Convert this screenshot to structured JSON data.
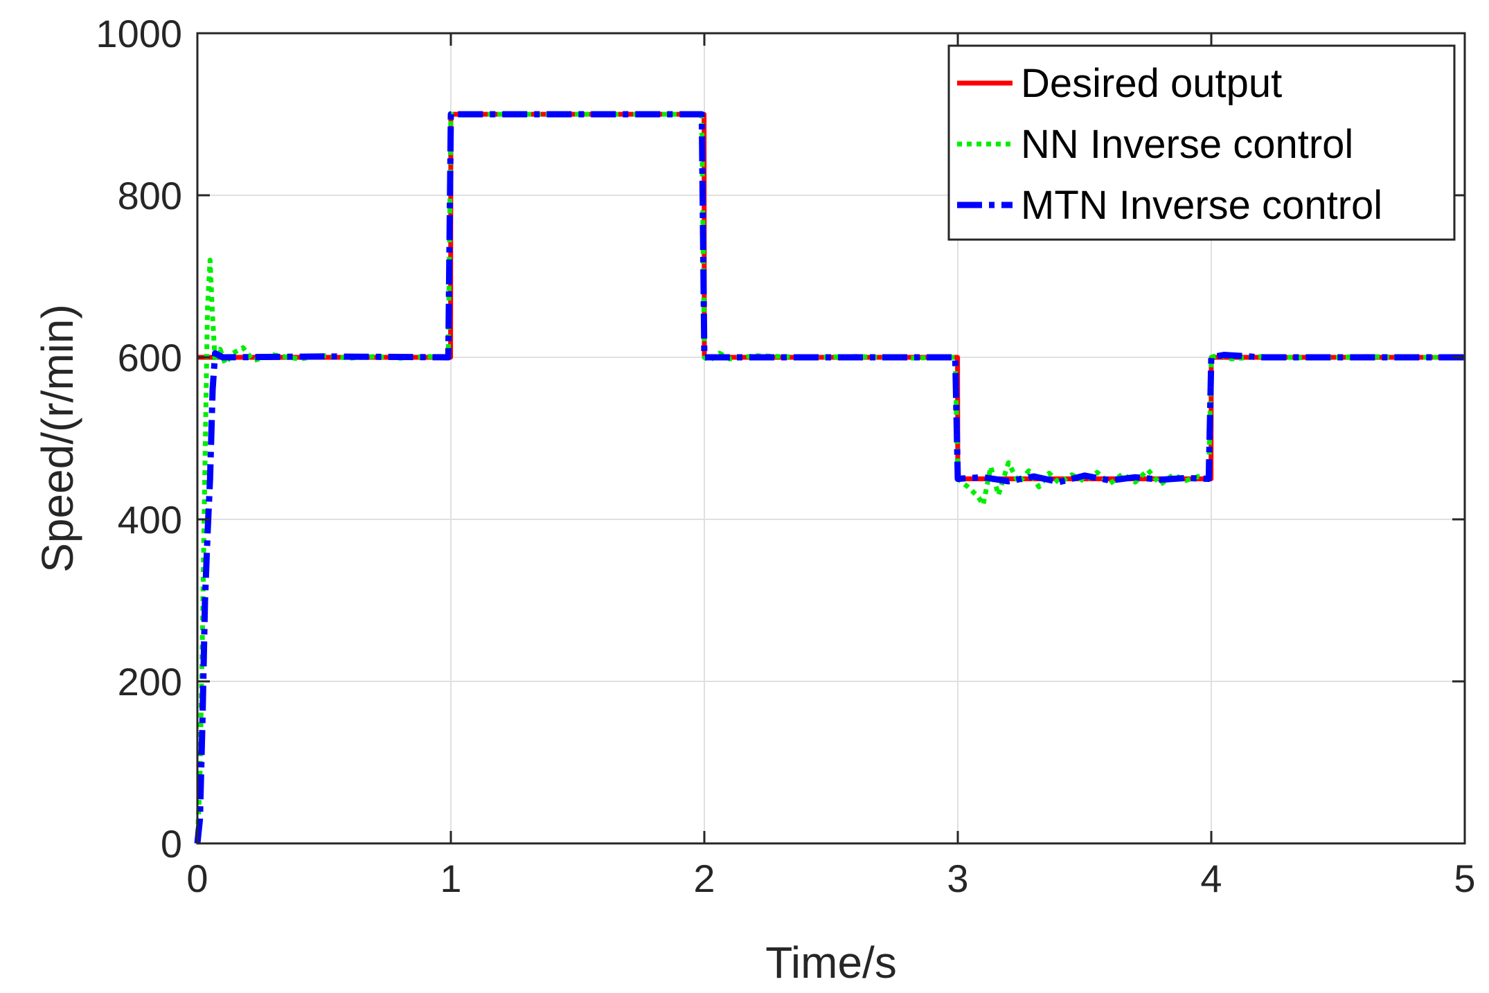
{
  "chart_data": {
    "type": "line",
    "title": "",
    "xlabel": "Time/s",
    "ylabel": "Speed/(r/min)",
    "xlim": [
      0,
      5
    ],
    "ylim": [
      0,
      1000
    ],
    "xticks": [
      0,
      1,
      2,
      3,
      4,
      5
    ],
    "yticks": [
      0,
      200,
      400,
      600,
      800,
      1000
    ],
    "grid": true,
    "legend_position": "top-right",
    "series": [
      {
        "name": "Desired output",
        "color": "#ff0000",
        "style": "solid",
        "points": [
          [
            0,
            600
          ],
          [
            0.999,
            600
          ],
          [
            1.0,
            900
          ],
          [
            1.999,
            900
          ],
          [
            2.0,
            600
          ],
          [
            2.999,
            600
          ],
          [
            3.0,
            450
          ],
          [
            3.999,
            450
          ],
          [
            4.0,
            600
          ],
          [
            5.0,
            600
          ]
        ]
      },
      {
        "name": "NN Inverse control",
        "color": "#00ee00",
        "style": "dotted",
        "points": [
          [
            0,
            0
          ],
          [
            0.01,
            80
          ],
          [
            0.02,
            260
          ],
          [
            0.03,
            470
          ],
          [
            0.04,
            660
          ],
          [
            0.05,
            720
          ],
          [
            0.06,
            650
          ],
          [
            0.07,
            595
          ],
          [
            0.09,
            610
          ],
          [
            0.11,
            592
          ],
          [
            0.14,
            605
          ],
          [
            0.18,
            612
          ],
          [
            0.22,
            596
          ],
          [
            0.3,
            603
          ],
          [
            0.4,
            598
          ],
          [
            0.5,
            602
          ],
          [
            0.6,
            599
          ],
          [
            0.7,
            601
          ],
          [
            0.8,
            599
          ],
          [
            0.9,
            601
          ],
          [
            0.99,
            600
          ],
          [
            1.0,
            900
          ],
          [
            1.99,
            900
          ],
          [
            2.0,
            600
          ],
          [
            2.02,
            596
          ],
          [
            2.06,
            605
          ],
          [
            2.1,
            598
          ],
          [
            2.2,
            602
          ],
          [
            2.4,
            600
          ],
          [
            2.6,
            601
          ],
          [
            2.8,
            599
          ],
          [
            2.99,
            600
          ],
          [
            3.0,
            450
          ],
          [
            3.04,
            440
          ],
          [
            3.08,
            428
          ],
          [
            3.1,
            418
          ],
          [
            3.13,
            465
          ],
          [
            3.16,
            430
          ],
          [
            3.2,
            470
          ],
          [
            3.24,
            445
          ],
          [
            3.28,
            460
          ],
          [
            3.32,
            440
          ],
          [
            3.36,
            457
          ],
          [
            3.4,
            445
          ],
          [
            3.45,
            455
          ],
          [
            3.5,
            447
          ],
          [
            3.55,
            458
          ],
          [
            3.6,
            444
          ],
          [
            3.65,
            456
          ],
          [
            3.7,
            446
          ],
          [
            3.75,
            461
          ],
          [
            3.8,
            443
          ],
          [
            3.85,
            455
          ],
          [
            3.9,
            448
          ],
          [
            3.95,
            453
          ],
          [
            3.99,
            450
          ],
          [
            4.0,
            600
          ],
          [
            4.03,
            603
          ],
          [
            4.08,
            598
          ],
          [
            4.2,
            601
          ],
          [
            4.4,
            599
          ],
          [
            4.6,
            601
          ],
          [
            4.8,
            600
          ],
          [
            5.0,
            600
          ]
        ]
      },
      {
        "name": "MTN Inverse control",
        "color": "#0000ff",
        "style": "dashdot",
        "points": [
          [
            0,
            0
          ],
          [
            0.01,
            30
          ],
          [
            0.02,
            150
          ],
          [
            0.03,
            300
          ],
          [
            0.04,
            380
          ],
          [
            0.05,
            450
          ],
          [
            0.06,
            560
          ],
          [
            0.07,
            605
          ],
          [
            0.1,
            600
          ],
          [
            0.5,
            601
          ],
          [
            0.99,
            600
          ],
          [
            1.0,
            900
          ],
          [
            1.99,
            900
          ],
          [
            2.0,
            600
          ],
          [
            2.99,
            600
          ],
          [
            3.0,
            450
          ],
          [
            3.1,
            452
          ],
          [
            3.2,
            447
          ],
          [
            3.3,
            453
          ],
          [
            3.4,
            446
          ],
          [
            3.5,
            454
          ],
          [
            3.6,
            448
          ],
          [
            3.7,
            452
          ],
          [
            3.8,
            449
          ],
          [
            3.9,
            451
          ],
          [
            3.99,
            450
          ],
          [
            4.0,
            600
          ],
          [
            4.05,
            603
          ],
          [
            4.2,
            600
          ],
          [
            5.0,
            600
          ]
        ]
      }
    ]
  }
}
